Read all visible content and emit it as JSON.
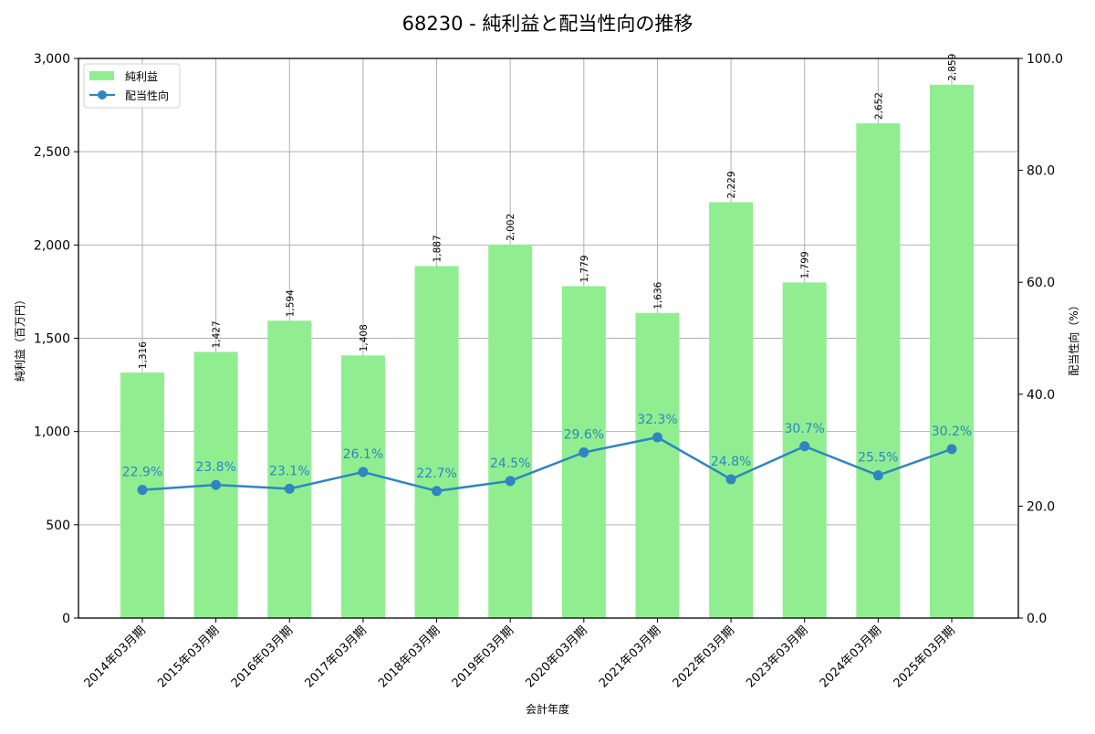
{
  "chart_data": {
    "type": "bar+line",
    "title": "68230 - 純利益と配当性向の推移",
    "xlabel": "会計年度",
    "ylabel_left": "純利益（百万円）",
    "ylabel_right": "配当性向（%）",
    "categories": [
      "2014年03月期",
      "2015年03月期",
      "2016年03月期",
      "2017年03月期",
      "2018年03月期",
      "2019年03月期",
      "2020年03月期",
      "2021年03月期",
      "2022年03月期",
      "2023年03月期",
      "2024年03月期",
      "2025年03月期"
    ],
    "series": [
      {
        "name": "純利益",
        "type": "bar",
        "axis": "left",
        "color": "#90ee90",
        "values": [
          1316,
          1427,
          1594,
          1408,
          1887,
          2002,
          1779,
          1636,
          2229,
          1799,
          2652,
          2859
        ],
        "labels": [
          "1,316",
          "1,427",
          "1,594",
          "1,408",
          "1,887",
          "2,002",
          "1,779",
          "1,636",
          "2,229",
          "1,799",
          "2,652",
          "2,859"
        ]
      },
      {
        "name": "配当性向",
        "type": "line",
        "axis": "right",
        "color": "#2e86c1",
        "values": [
          22.9,
          23.8,
          23.1,
          26.1,
          22.7,
          24.5,
          29.6,
          32.3,
          24.8,
          30.7,
          25.5,
          30.2
        ],
        "labels": [
          "22.9%",
          "23.8%",
          "23.1%",
          "26.1%",
          "22.7%",
          "24.5%",
          "29.6%",
          "32.3%",
          "24.8%",
          "30.7%",
          "25.5%",
          "30.2%"
        ]
      }
    ],
    "ylim_left": [
      0,
      3000
    ],
    "ylim_right": [
      0,
      100
    ],
    "yticks_left": [
      0,
      500,
      1000,
      1500,
      2000,
      2500,
      3000
    ],
    "yticks_left_labels": [
      "0",
      "500",
      "1,000",
      "1,500",
      "2,000",
      "2,500",
      "3,000"
    ],
    "yticks_right": [
      0,
      20,
      40,
      60,
      80,
      100
    ],
    "yticks_right_labels": [
      "0.0",
      "20.0",
      "40.0",
      "60.0",
      "80.0",
      "100.0"
    ],
    "grid": true,
    "legend_position": "upper left"
  }
}
